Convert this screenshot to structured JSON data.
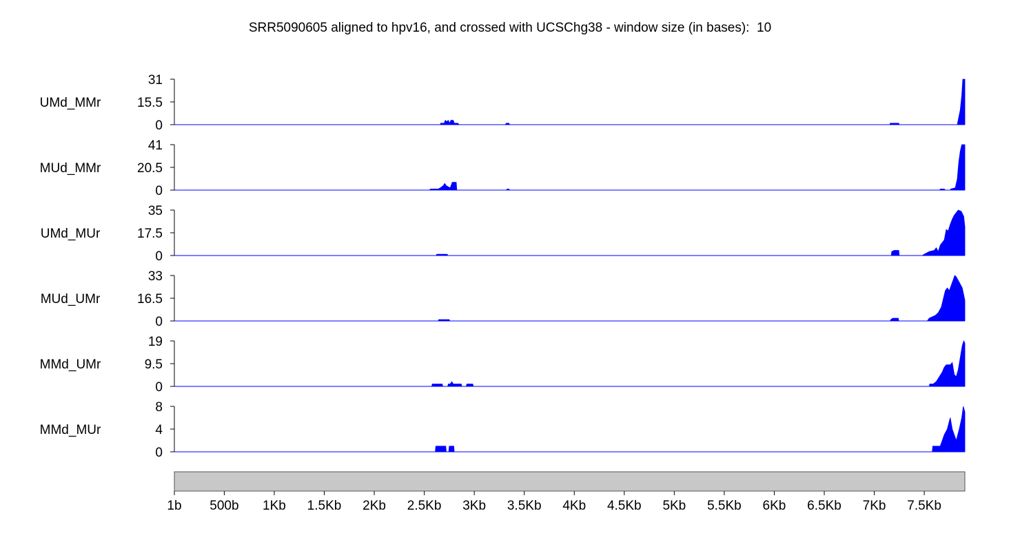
{
  "title": "SRR5090605 aligned to hpv16, and crossed with UCSChg38 - window size (in bases):  10",
  "colors": {
    "fill": "#0000ff",
    "axis": "#000000",
    "genome_bar": "#c8c8c8"
  },
  "chart_data": {
    "type": "area",
    "genome_length": 7906,
    "xlim": [
      1,
      7906
    ],
    "x_ticks": [
      {
        "value": 1,
        "label": "1b"
      },
      {
        "value": 500,
        "label": "500b"
      },
      {
        "value": 1000,
        "label": "1Kb"
      },
      {
        "value": 1500,
        "label": "1.5Kb"
      },
      {
        "value": 2000,
        "label": "2Kb"
      },
      {
        "value": 2500,
        "label": "2.5Kb"
      },
      {
        "value": 3000,
        "label": "3Kb"
      },
      {
        "value": 3500,
        "label": "3.5Kb"
      },
      {
        "value": 4000,
        "label": "4Kb"
      },
      {
        "value": 4500,
        "label": "4.5Kb"
      },
      {
        "value": 5000,
        "label": "5Kb"
      },
      {
        "value": 5500,
        "label": "5.5Kb"
      },
      {
        "value": 6000,
        "label": "6Kb"
      },
      {
        "value": 6500,
        "label": "6.5Kb"
      },
      {
        "value": 7000,
        "label": "7Kb"
      },
      {
        "value": 7500,
        "label": "7.5Kb"
      }
    ],
    "series": [
      {
        "name": "UMd_MMr",
        "ymax": 31,
        "yticks": [
          "31",
          "15.5",
          "0"
        ],
        "points": [
          [
            2660,
            0
          ],
          [
            2665,
            1
          ],
          [
            2700,
            1
          ],
          [
            2710,
            3
          ],
          [
            2725,
            2
          ],
          [
            2740,
            3
          ],
          [
            2755,
            1
          ],
          [
            2765,
            3
          ],
          [
            2790,
            3
          ],
          [
            2800,
            1
          ],
          [
            2835,
            1
          ],
          [
            2850,
            0
          ],
          [
            3310,
            0
          ],
          [
            3320,
            1
          ],
          [
            3345,
            1
          ],
          [
            3355,
            0
          ],
          [
            7155,
            0
          ],
          [
            7160,
            1
          ],
          [
            7245,
            1
          ],
          [
            7250,
            0
          ],
          [
            7830,
            0
          ],
          [
            7845,
            5
          ],
          [
            7860,
            10
          ],
          [
            7875,
            20
          ],
          [
            7885,
            31
          ],
          [
            7906,
            31
          ]
        ]
      },
      {
        "name": "MUd_MMr",
        "ymax": 41,
        "yticks": [
          "41",
          "20.5",
          "0"
        ],
        "points": [
          [
            2555,
            0
          ],
          [
            2560,
            1
          ],
          [
            2640,
            1
          ],
          [
            2660,
            2
          ],
          [
            2690,
            4
          ],
          [
            2705,
            6
          ],
          [
            2720,
            4
          ],
          [
            2740,
            3
          ],
          [
            2760,
            2
          ],
          [
            2780,
            7
          ],
          [
            2820,
            7
          ],
          [
            2825,
            0
          ],
          [
            3320,
            0
          ],
          [
            3330,
            1
          ],
          [
            3345,
            1
          ],
          [
            3355,
            0
          ],
          [
            7655,
            0
          ],
          [
            7660,
            1
          ],
          [
            7700,
            1
          ],
          [
            7710,
            0
          ],
          [
            7760,
            0
          ],
          [
            7765,
            1
          ],
          [
            7810,
            2
          ],
          [
            7830,
            10
          ],
          [
            7845,
            25
          ],
          [
            7860,
            35
          ],
          [
            7875,
            41
          ],
          [
            7906,
            41
          ]
        ]
      },
      {
        "name": "UMd_MUr",
        "ymax": 35,
        "yticks": [
          "35",
          "17.5",
          "0"
        ],
        "points": [
          [
            2620,
            0
          ],
          [
            2625,
            1
          ],
          [
            2730,
            1
          ],
          [
            2735,
            0
          ],
          [
            7170,
            0
          ],
          [
            7175,
            3
          ],
          [
            7200,
            4
          ],
          [
            7245,
            4
          ],
          [
            7250,
            0
          ],
          [
            7480,
            0
          ],
          [
            7500,
            1
          ],
          [
            7550,
            3
          ],
          [
            7600,
            4
          ],
          [
            7620,
            6
          ],
          [
            7640,
            3
          ],
          [
            7660,
            8
          ],
          [
            7700,
            12
          ],
          [
            7720,
            20
          ],
          [
            7740,
            19
          ],
          [
            7760,
            24
          ],
          [
            7780,
            28
          ],
          [
            7800,
            31
          ],
          [
            7820,
            33
          ],
          [
            7840,
            35
          ],
          [
            7870,
            34
          ],
          [
            7895,
            30
          ],
          [
            7906,
            22
          ]
        ]
      },
      {
        "name": "MUd_UMr",
        "ymax": 33,
        "yticks": [
          "33",
          "16.5",
          "0"
        ],
        "points": [
          [
            2640,
            0
          ],
          [
            2645,
            1
          ],
          [
            2750,
            1
          ],
          [
            2755,
            0
          ],
          [
            7160,
            0
          ],
          [
            7165,
            1
          ],
          [
            7185,
            2
          ],
          [
            7240,
            2
          ],
          [
            7245,
            0
          ],
          [
            7530,
            0
          ],
          [
            7550,
            2
          ],
          [
            7580,
            3
          ],
          [
            7610,
            4
          ],
          [
            7640,
            6
          ],
          [
            7670,
            10
          ],
          [
            7690,
            16
          ],
          [
            7710,
            22
          ],
          [
            7730,
            24
          ],
          [
            7750,
            22
          ],
          [
            7770,
            26
          ],
          [
            7790,
            30
          ],
          [
            7805,
            33
          ],
          [
            7820,
            32
          ],
          [
            7850,
            28
          ],
          [
            7880,
            24
          ],
          [
            7906,
            15
          ]
        ]
      },
      {
        "name": "MMd_UMr",
        "ymax": 19,
        "yticks": [
          "19",
          "9.5",
          "0"
        ],
        "points": [
          [
            2575,
            0
          ],
          [
            2580,
            1
          ],
          [
            2680,
            1
          ],
          [
            2685,
            0
          ],
          [
            2735,
            0
          ],
          [
            2740,
            1
          ],
          [
            2760,
            1
          ],
          [
            2775,
            2
          ],
          [
            2790,
            1
          ],
          [
            2870,
            1
          ],
          [
            2875,
            0
          ],
          [
            2920,
            0
          ],
          [
            2925,
            1
          ],
          [
            2985,
            1
          ],
          [
            2990,
            0
          ],
          [
            7550,
            0
          ],
          [
            7555,
            1
          ],
          [
            7590,
            1
          ],
          [
            7620,
            2
          ],
          [
            7650,
            4
          ],
          [
            7680,
            6
          ],
          [
            7700,
            8
          ],
          [
            7720,
            9
          ],
          [
            7760,
            9
          ],
          [
            7780,
            10
          ],
          [
            7800,
            5
          ],
          [
            7820,
            4
          ],
          [
            7840,
            7
          ],
          [
            7860,
            12
          ],
          [
            7880,
            17
          ],
          [
            7895,
            19
          ],
          [
            7906,
            18
          ]
        ]
      },
      {
        "name": "MMd_MUr",
        "ymax": 8,
        "yticks": [
          "8",
          "4",
          "0"
        ],
        "points": [
          [
            2610,
            0
          ],
          [
            2615,
            1
          ],
          [
            2715,
            1
          ],
          [
            2720,
            0
          ],
          [
            2745,
            0
          ],
          [
            2750,
            1
          ],
          [
            2795,
            1
          ],
          [
            2800,
            0
          ],
          [
            7580,
            0
          ],
          [
            7585,
            1
          ],
          [
            7660,
            1
          ],
          [
            7680,
            2
          ],
          [
            7700,
            3
          ],
          [
            7730,
            4
          ],
          [
            7745,
            5
          ],
          [
            7760,
            6
          ],
          [
            7780,
            4
          ],
          [
            7800,
            3
          ],
          [
            7820,
            2
          ],
          [
            7850,
            4
          ],
          [
            7875,
            6
          ],
          [
            7890,
            8
          ],
          [
            7906,
            7
          ]
        ]
      }
    ]
  }
}
